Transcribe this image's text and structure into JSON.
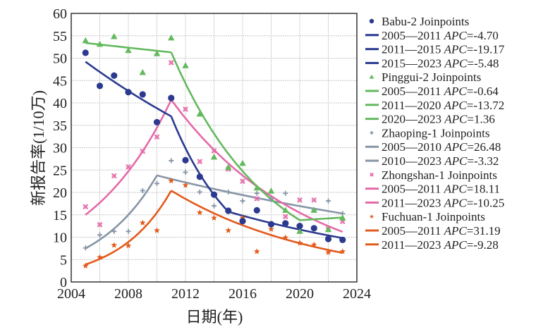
{
  "chart_data": {
    "type": "line",
    "title": "",
    "xlabel": "日期(年)",
    "ylabel": "新报告率(1/10万)",
    "xlim": [
      2004,
      2024
    ],
    "ylim": [
      0,
      60
    ],
    "xticks": [
      "2004",
      "2008",
      "2012",
      "2016",
      "2020",
      "2024"
    ],
    "yticks": [
      "0",
      "5",
      "10",
      "15",
      "20",
      "25",
      "30",
      "35",
      "40",
      "45",
      "50",
      "55",
      "60"
    ],
    "grid": true,
    "legend_position": "right",
    "series": [
      {
        "name": "Babu-2 Joinpoints",
        "color": "#2b3a8f",
        "marker": "circle",
        "x": [
          2005,
          2006,
          2007,
          2008,
          2009,
          2010,
          2011,
          2012,
          2013,
          2014,
          2015,
          2016,
          2017,
          2018,
          2019,
          2020,
          2021,
          2022,
          2023
        ],
        "values": [
          51.2,
          43.8,
          46.1,
          42.4,
          41.9,
          35.7,
          41.1,
          27.2,
          23.5,
          19.5,
          15.9,
          13.6,
          16.0,
          12.9,
          13.1,
          12.5,
          12.0,
          9.6,
          9.4
        ],
        "segments": [
          {
            "label": "2005—2011 ",
            "apc": "APC",
            "value": "=-4.70",
            "x": [
              2005,
              2011
            ],
            "y": [
              49.2,
              37.0
            ]
          },
          {
            "label": "2011—2015 ",
            "apc": "APC",
            "value": "=-19.17",
            "x": [
              2011,
              2015
            ],
            "y": [
              37.0,
              15.7
            ]
          },
          {
            "label": "2015—2023 ",
            "apc": "APC",
            "value": "=-5.48",
            "x": [
              2015,
              2023
            ],
            "y": [
              15.7,
              9.8
            ]
          }
        ]
      },
      {
        "name": "Pinggui-2 Joinpoints",
        "color": "#63b95e",
        "marker": "triangle",
        "x": [
          2005,
          2006,
          2007,
          2008,
          2009,
          2010,
          2011,
          2012,
          2013,
          2014,
          2015,
          2016,
          2017,
          2018,
          2019,
          2020,
          2021,
          2022,
          2023
        ],
        "values": [
          53.9,
          53.1,
          54.8,
          51.7,
          46.8,
          51.0,
          54.5,
          48.3,
          37.5,
          27.9,
          25.6,
          26.5,
          21.0,
          20.3,
          16.0,
          11.3,
          16.0,
          11.7,
          14.3
        ],
        "segments": [
          {
            "label": "2005—2011 ",
            "apc": "APC",
            "value": "=-0.64",
            "x": [
              2005,
              2011
            ],
            "y": [
              53.4,
              51.3
            ]
          },
          {
            "label": "2011—2020 ",
            "apc": "APC",
            "value": "=-13.72",
            "x": [
              2011,
              2020
            ],
            "y": [
              51.3,
              13.8
            ]
          },
          {
            "label": "2020—2023 ",
            "apc": "APC",
            "value": "=1.36",
            "x": [
              2020,
              2023
            ],
            "y": [
              13.8,
              14.4
            ]
          }
        ]
      },
      {
        "name": "Zhaoping-1 Joinpoints",
        "color": "#8795a6",
        "marker": "plus",
        "x": [
          2005,
          2006,
          2007,
          2008,
          2009,
          2010,
          2011,
          2012,
          2013,
          2014,
          2015,
          2016,
          2017,
          2018,
          2019,
          2021,
          2022,
          2023
        ],
        "values": [
          7.6,
          10.5,
          11.3,
          11.3,
          20.4,
          22.0,
          27.1,
          24.5,
          20.1,
          17.0,
          20.1,
          18.1,
          19.8,
          18.6,
          19.8,
          16.0,
          18.1,
          15.3
        ],
        "segments": [
          {
            "label": "2005—2010 ",
            "apc": "APC",
            "value": "=26.48",
            "x": [
              2005,
              2010
            ],
            "y": [
              7.5,
              23.8
            ]
          },
          {
            "label": "2010—2023 ",
            "apc": "APC",
            "value": "=-3.32",
            "x": [
              2010,
              2023
            ],
            "y": [
              23.8,
              15.3
            ]
          }
        ]
      },
      {
        "name": "Zhongshan-1 Joinpoints",
        "color": "#e46aa8",
        "marker": "cross",
        "x": [
          2005,
          2006,
          2007,
          2008,
          2009,
          2010,
          2011,
          2012,
          2013,
          2014,
          2015,
          2016,
          2017,
          2018,
          2019,
          2020,
          2021,
          2022,
          2023
        ],
        "values": [
          16.8,
          12.8,
          23.7,
          25.7,
          29.2,
          32.4,
          49.0,
          38.6,
          26.9,
          29.3,
          25.2,
          22.5,
          18.6,
          12.9,
          14.6,
          18.3,
          18.3,
          11.8,
          13.5
        ],
        "segments": [
          {
            "label": "2005—2011 ",
            "apc": "APC",
            "value": "=18.11",
            "x": [
              2005,
              2011
            ],
            "y": [
              15.0,
              40.7
            ]
          },
          {
            "label": "2011—2023 ",
            "apc": "APC",
            "value": "=-10.25",
            "x": [
              2011,
              2023
            ],
            "y": [
              40.7,
              11.2
            ]
          }
        ]
      },
      {
        "name": "Fuchuan-1 Joinpoints",
        "color": "#e25a1c",
        "marker": "star",
        "x": [
          2005,
          2006,
          2007,
          2008,
          2009,
          2010,
          2011,
          2012,
          2013,
          2014,
          2015,
          2016,
          2017,
          2018,
          2019,
          2020,
          2021,
          2022,
          2023
        ],
        "values": [
          3.6,
          5.5,
          8.2,
          8.1,
          13.2,
          11.5,
          22.6,
          21.6,
          15.5,
          14.3,
          11.5,
          14.3,
          6.8,
          11.8,
          9.9,
          8.7,
          8.3,
          6.6,
          6.8
        ],
        "segments": [
          {
            "label": "2005—2011 ",
            "apc": "APC",
            "value": "=31.19",
            "x": [
              2005,
              2011
            ],
            "y": [
              3.9,
              20.4
            ]
          },
          {
            "label": "2011—2023 ",
            "apc": "APC",
            "value": "=-9.28",
            "x": [
              2011,
              2023
            ],
            "y": [
              20.4,
              6.5
            ]
          }
        ]
      }
    ]
  }
}
